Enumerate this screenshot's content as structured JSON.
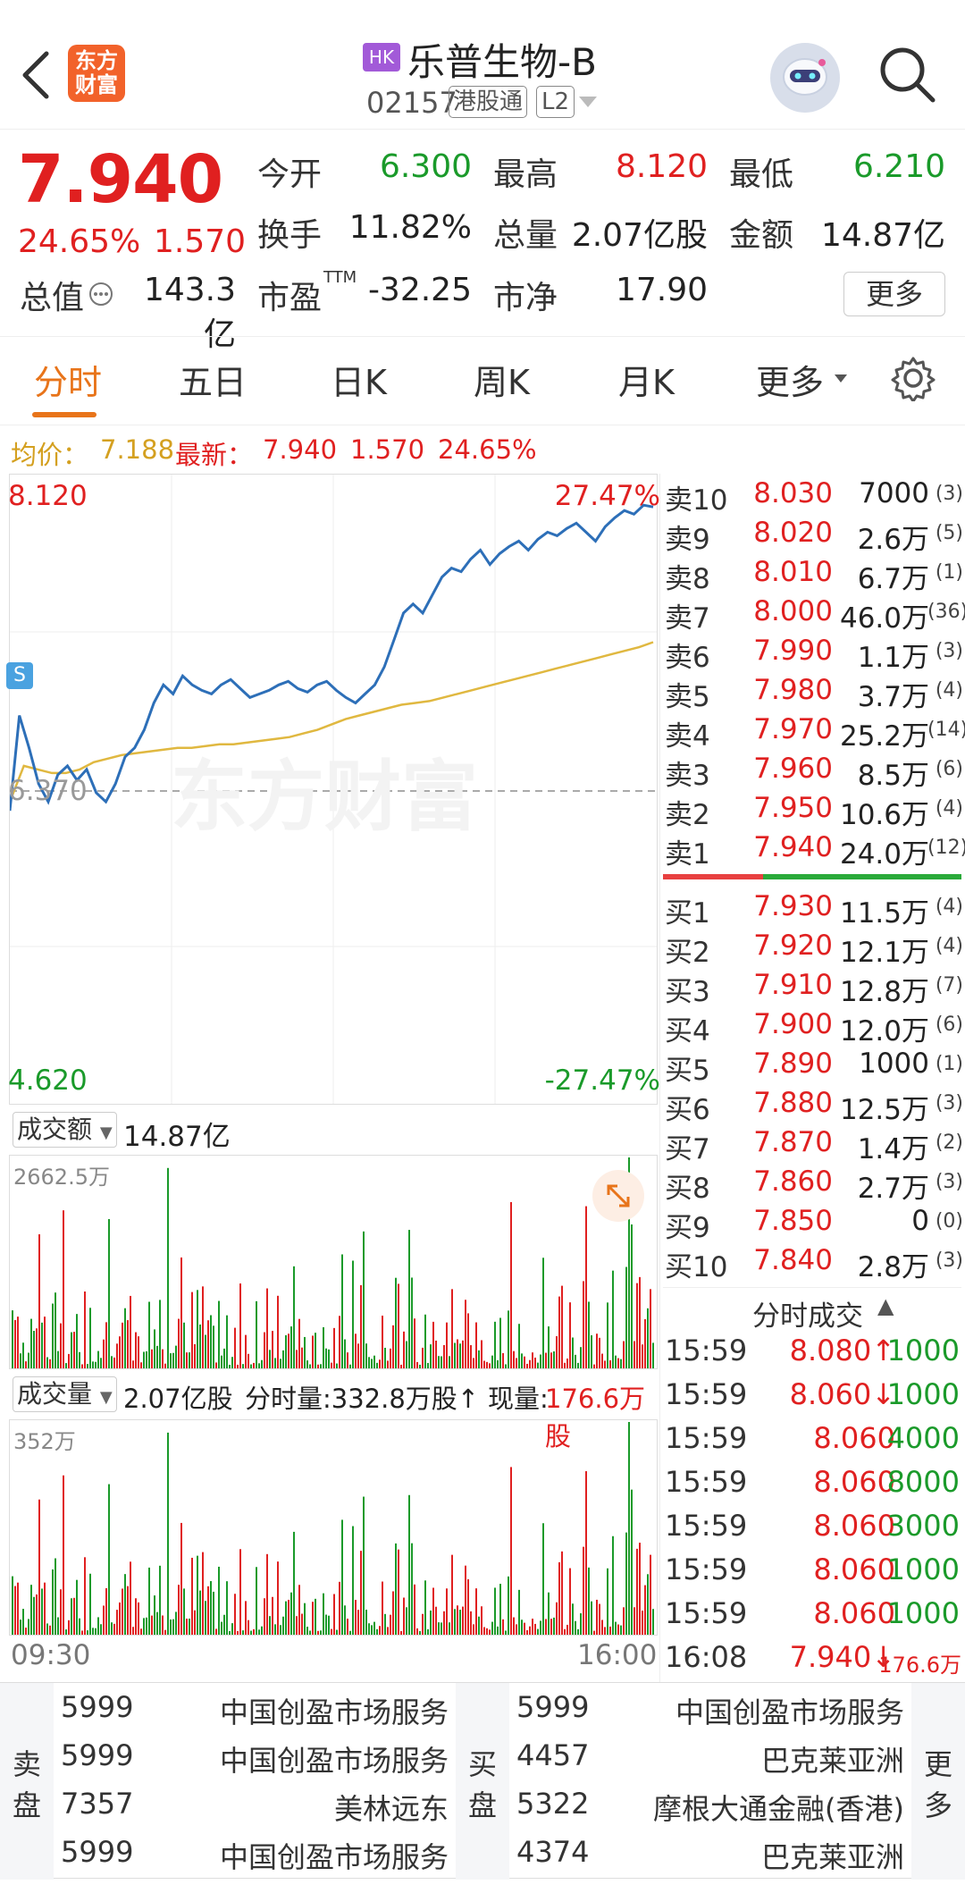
{
  "header": {
    "logo_text": "东方财富",
    "hk_badge": "HK",
    "stock_name": "乐普生物-B",
    "stock_code": "02157",
    "connect_badge": "港股通",
    "level_badge": "L2"
  },
  "quote": {
    "price": "7.940",
    "change_pct": "24.65%",
    "change": "1.570",
    "stats": [
      {
        "label": "今开",
        "value": "6.300",
        "color": "#1a9a2a"
      },
      {
        "label": "最高",
        "value": "8.120",
        "color": "#e02020"
      },
      {
        "label": "最低",
        "value": "6.210",
        "color": "#1a9a2a"
      },
      {
        "label": "换手",
        "value": "11.82%",
        "color": "#222222"
      },
      {
        "label": "总量",
        "value": "2.07亿股",
        "color": "#222222"
      },
      {
        "label": "金额",
        "value": "14.87亿",
        "color": "#222222"
      },
      {
        "label": "总值",
        "value": "143.3亿",
        "color": "#222222"
      },
      {
        "label": "市盈",
        "value": "-32.25",
        "color": "#222222"
      },
      {
        "label": "市净",
        "value": "17.90",
        "color": "#222222"
      }
    ],
    "pe_superscript": "TTM",
    "more_label": "更多"
  },
  "tabs": [
    "分时",
    "五日",
    "日K",
    "周K",
    "月K",
    "更多"
  ],
  "avg_bar": {
    "avg_label": "均价：",
    "avg_value": "7.188",
    "latest_label": "最新：",
    "latest_value": "7.940",
    "latest_change": "1.570",
    "latest_pct": "24.65%"
  },
  "chart": {
    "y_high": "8.120",
    "y_low": "4.620",
    "pct_high": "27.47%",
    "pct_low": "-27.47%",
    "ref_price": "6.370",
    "s_marker": "S",
    "watermark": "东方财富",
    "time_start": "09:30",
    "time_end": "16:00"
  },
  "chart_data": {
    "type": "line",
    "series": [
      {
        "values": [
          6.25,
          6.78,
          6.6,
          6.4,
          6.3,
          6.45,
          6.5,
          6.42,
          6.48,
          6.35,
          6.3,
          6.4,
          6.55,
          6.6,
          6.7,
          6.85,
          6.95,
          6.9,
          7.0,
          6.95,
          6.92,
          6.9,
          6.95,
          6.98,
          6.93,
          6.88,
          6.9,
          6.92,
          6.95,
          6.97,
          6.93,
          6.91,
          6.95,
          6.97,
          6.92,
          6.88,
          6.85,
          6.9,
          6.95,
          7.05,
          7.2,
          7.35,
          7.4,
          7.35,
          7.45,
          7.55,
          7.6,
          7.58,
          7.65,
          7.7,
          7.62,
          7.68,
          7.72,
          7.75,
          7.7,
          7.76,
          7.8,
          7.78,
          7.82,
          7.85,
          7.8,
          7.75,
          7.83,
          7.88,
          7.92,
          7.9,
          7.95,
          7.94
        ]
      },
      {
        "values": [
          6.3,
          6.5,
          6.48,
          6.46,
          6.46,
          6.48,
          6.52,
          6.54,
          6.56,
          6.57,
          6.58,
          6.59,
          6.6,
          6.6,
          6.61,
          6.62,
          6.62,
          6.63,
          6.64,
          6.65,
          6.66,
          6.68,
          6.7,
          6.73,
          6.76,
          6.78,
          6.8,
          6.82,
          6.84,
          6.85,
          6.86,
          6.88,
          6.9,
          6.92,
          6.94,
          6.96,
          6.98,
          7.0,
          7.02,
          7.04,
          7.06,
          7.08,
          7.1,
          7.12,
          7.14,
          7.16,
          7.188
        ]
      }
    ],
    "ylim": [
      4.62,
      8.12
    ]
  },
  "turnover_panel": {
    "selector_label": "成交额",
    "total": "14.87亿",
    "max_label": "2662.5万"
  },
  "volume_panel": {
    "selector_label": "成交量",
    "total": "2.07亿股",
    "minute_vol": "分时量:332.8万股↑",
    "now_label": "现量:",
    "now_value": "176.6万股"
  },
  "order_book": {
    "asks": [
      {
        "label": "卖10",
        "price": "8.030",
        "vol": "7000",
        "count": "(3)"
      },
      {
        "label": "卖9",
        "price": "8.020",
        "vol": "2.6万",
        "count": "(5)"
      },
      {
        "label": "卖8",
        "price": "8.010",
        "vol": "6.7万",
        "count": "(1)"
      },
      {
        "label": "卖7",
        "price": "8.000",
        "vol": "46.0万",
        "count": "(36)"
      },
      {
        "label": "卖6",
        "price": "7.990",
        "vol": "1.1万",
        "count": "(3)"
      },
      {
        "label": "卖5",
        "price": "7.980",
        "vol": "3.7万",
        "count": "(4)"
      },
      {
        "label": "卖4",
        "price": "7.970",
        "vol": "25.2万",
        "count": "(14)"
      },
      {
        "label": "卖3",
        "price": "7.960",
        "vol": "8.5万",
        "count": "(6)"
      },
      {
        "label": "卖2",
        "price": "7.950",
        "vol": "10.6万",
        "count": "(4)"
      },
      {
        "label": "卖1",
        "price": "7.940",
        "vol": "24.0万",
        "count": "(12)"
      }
    ],
    "bids": [
      {
        "label": "买1",
        "price": "7.930",
        "vol": "11.5万",
        "count": "(4)"
      },
      {
        "label": "买2",
        "price": "7.920",
        "vol": "12.1万",
        "count": "(4)"
      },
      {
        "label": "买3",
        "price": "7.910",
        "vol": "12.8万",
        "count": "(7)"
      },
      {
        "label": "买4",
        "price": "7.900",
        "vol": "12.0万",
        "count": "(6)"
      },
      {
        "label": "买5",
        "price": "7.890",
        "vol": "1000",
        "count": "(1)"
      },
      {
        "label": "买6",
        "price": "7.880",
        "vol": "12.5万",
        "count": "(3)"
      },
      {
        "label": "买7",
        "price": "7.870",
        "vol": "1.4万",
        "count": "(2)"
      },
      {
        "label": "买8",
        "price": "7.860",
        "vol": "2.7万",
        "count": "(3)"
      },
      {
        "label": "买9",
        "price": "7.850",
        "vol": "0",
        "count": "(0)"
      },
      {
        "label": "买10",
        "price": "7.840",
        "vol": "2.8万",
        "count": "(3)"
      }
    ]
  },
  "ticks": {
    "title": "分时成交",
    "rows": [
      {
        "time": "15:59",
        "price": "8.080↑",
        "vol": "1000"
      },
      {
        "time": "15:59",
        "price": "8.060↓",
        "vol": "1000"
      },
      {
        "time": "15:59",
        "price": "8.060",
        "vol": "4000"
      },
      {
        "time": "15:59",
        "price": "8.060",
        "vol": "8000"
      },
      {
        "time": "15:59",
        "price": "8.060",
        "vol": "3000"
      },
      {
        "time": "15:59",
        "price": "8.060",
        "vol": "1000"
      },
      {
        "time": "15:59",
        "price": "8.060",
        "vol": "1000"
      },
      {
        "time": "16:08",
        "price": "7.940↓",
        "vol": "176.6万"
      }
    ]
  },
  "broker_queue": {
    "sell_label": "卖盘",
    "buy_label": "买盘",
    "more_label": "更多",
    "sell": [
      {
        "code": "5999",
        "name": "中国创盈市场服务"
      },
      {
        "code": "5999",
        "name": "中国创盈市场服务"
      },
      {
        "code": "7357",
        "name": "美林远东"
      },
      {
        "code": "5999",
        "name": "中国创盈市场服务"
      }
    ],
    "buy": [
      {
        "code": "5999",
        "name": "中国创盈市场服务"
      },
      {
        "code": "4457",
        "name": "巴克莱亚洲"
      },
      {
        "code": "5322",
        "name": "摩根大通金融(香港)"
      },
      {
        "code": "4374",
        "name": "巴克莱亚洲"
      }
    ]
  }
}
